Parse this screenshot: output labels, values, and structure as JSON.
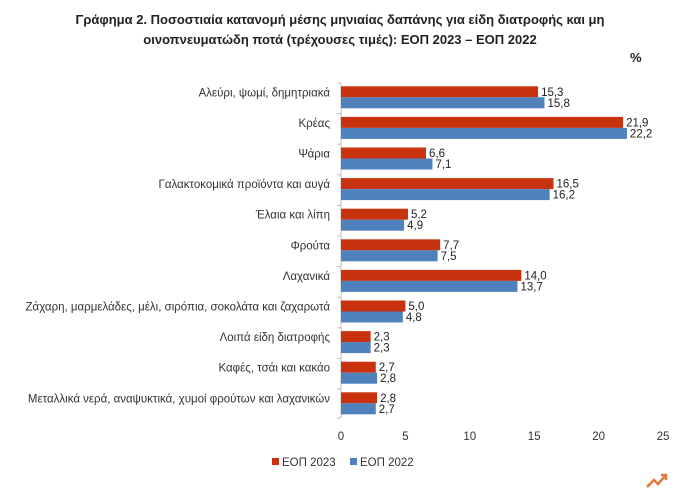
{
  "chart_data": {
    "type": "bar",
    "orientation": "horizontal",
    "title_line1": "Γράφημα 2.  Ποσοστιαία κατανομή μέσης μηνιαίας δαπάνης για είδη διατροφής και μη",
    "title_line2": "οινοπνευματώδη ποτά (τρέχουσες τιμές): ΕΟΠ 2023 – ΕΟΠ 2022",
    "unit": "%",
    "categories": [
      "Αλεύρι, ψωμί, δημητριακά",
      "Κρέας",
      "Ψάρια",
      "Γαλακτοκομικά προϊόντα και αυγά",
      "Έλαια και λίπη",
      "Φρούτα",
      "Λαχανικά",
      "Ζάχαρη, μαρμελάδες, μέλι, σιρόπια, σοκολάτα και ζαχαρωτά",
      "Λοιπά είδη διατροφής",
      "Καφές, τσάι και κακάο",
      "Μεταλλικά νερά, αναψυκτικά, χυμοί φρούτων και λαχανικών"
    ],
    "series": [
      {
        "name": "ΕΟΠ 2023",
        "color": "#c8320f",
        "values": [
          15.3,
          21.9,
          6.6,
          16.5,
          5.2,
          7.7,
          14.0,
          5.0,
          2.3,
          2.7,
          2.8
        ],
        "labels": [
          "15,3",
          "21,9",
          "6,6",
          "16,5",
          "5,2",
          "7,7",
          "14,0",
          "5,0",
          "2,3",
          "2,7",
          "2,8"
        ]
      },
      {
        "name": "ΕΟΠ 2022",
        "color": "#4f81bd",
        "values": [
          15.8,
          22.2,
          7.1,
          16.2,
          4.9,
          7.5,
          13.7,
          4.8,
          2.3,
          2.8,
          2.7
        ],
        "labels": [
          "15,8",
          "22,2",
          "7,1",
          "16,2",
          "4,9",
          "7,5",
          "13,7",
          "4,8",
          "2,3",
          "2,8",
          "2,7"
        ]
      }
    ],
    "xlim": [
      0,
      25
    ],
    "xticks": [
      0,
      5,
      10,
      15,
      20,
      25
    ],
    "grid": false,
    "legend_position": "bottom"
  }
}
